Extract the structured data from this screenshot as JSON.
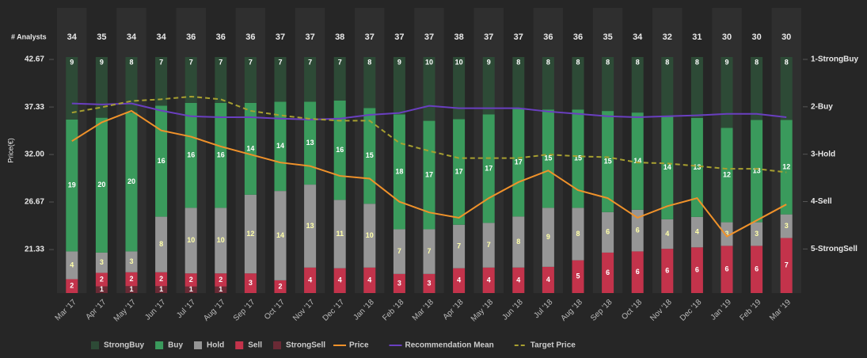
{
  "chart_data": {
    "type": "bar",
    "stacked": true,
    "normalized": true,
    "ylabel": "Price(€)",
    "analysts_label": "# Analysts",
    "analysts": [
      34,
      35,
      34,
      34,
      36,
      36,
      36,
      37,
      37,
      38,
      37,
      37,
      37,
      38,
      37,
      37,
      36,
      36,
      35,
      34,
      32,
      31,
      30,
      30,
      30
    ],
    "categories": [
      "Mar '17",
      "Apr '17",
      "May '17",
      "Jun '17",
      "Jul '17",
      "Aug '17",
      "Sep '17",
      "Oct '17",
      "Nov '17",
      "Dec '17",
      "Jan '18",
      "Feb '18",
      "Mar '18",
      "Apr '18",
      "May '18",
      "Jun '18",
      "Jul '18",
      "Aug '18",
      "Sep '18",
      "Oct '18",
      "Nov '18",
      "Dec '18",
      "Jan '19",
      "Feb '19",
      "Mar '19"
    ],
    "ylim": [
      16.45,
      42.94
    ],
    "yticks": [
      42.67,
      37.33,
      {
        "value": 32,
        "label": "32.00"
      },
      26.67,
      21.33
    ],
    "y2lim": [
      5.93,
      0.95
    ],
    "y2ticks": [
      {
        "value": 1,
        "label": "1-StrongBuy"
      },
      {
        "value": 2,
        "label": "2-Buy"
      },
      {
        "value": 3,
        "label": "3-Hold"
      },
      {
        "value": 4,
        "label": "4-Sell"
      },
      {
        "value": 5,
        "label": "5-StrongSell"
      }
    ],
    "series": [
      {
        "name": "StrongBuy",
        "type": "bar",
        "color": "#2d4a36",
        "label_color": "#ffffff",
        "values": [
          9,
          9,
          8,
          7,
          7,
          7,
          7,
          7,
          7,
          7,
          8,
          9,
          10,
          10,
          9,
          8,
          8,
          8,
          8,
          8,
          8,
          8,
          9,
          8,
          8
        ]
      },
      {
        "name": "Buy",
        "type": "bar",
        "color": "#3a9a5c",
        "label_color": "#ffffff",
        "values": [
          19,
          20,
          20,
          16,
          16,
          16,
          14,
          14,
          13,
          16,
          15,
          18,
          17,
          17,
          17,
          17,
          15,
          15,
          15,
          14,
          14,
          13,
          12,
          13,
          12
        ]
      },
      {
        "name": "Hold",
        "type": "bar",
        "color": "#969696",
        "label_color": "#ffffa8",
        "values": [
          4,
          3,
          3,
          8,
          10,
          10,
          12,
          14,
          13,
          11,
          10,
          7,
          7,
          7,
          7,
          8,
          9,
          8,
          6,
          6,
          4,
          4,
          3,
          3,
          3
        ]
      },
      {
        "name": "Sell",
        "type": "bar",
        "color": "#c3334b",
        "label_color": "#ffffff",
        "values": [
          2,
          2,
          2,
          2,
          2,
          2,
          3,
          2,
          4,
          4,
          4,
          3,
          3,
          4,
          4,
          4,
          4,
          5,
          6,
          6,
          6,
          6,
          6,
          6,
          7
        ]
      },
      {
        "name": "StrongSell",
        "type": "bar",
        "color": "#6a2a35",
        "label_color": "#ffffff",
        "values": [
          0,
          1,
          1,
          1,
          1,
          1,
          0,
          0,
          0,
          0,
          0,
          0,
          0,
          0,
          0,
          0,
          0,
          0,
          0,
          0,
          0,
          0,
          0,
          0,
          0
        ]
      },
      {
        "name": "Price",
        "type": "line",
        "color": "#f0922a",
        "values": [
          33.5,
          35.6,
          36.9,
          34.7,
          34.0,
          32.9,
          32.0,
          31.1,
          30.7,
          29.6,
          29.3,
          26.7,
          25.5,
          24.9,
          27.1,
          28.9,
          30.2,
          28.0,
          27.1,
          24.9,
          26.2,
          27.1,
          22.8,
          24.6,
          26.4
        ]
      },
      {
        "name": "Recommendation Mean",
        "type": "line",
        "axis": "y2",
        "color": "#6a3fc0",
        "values": [
          1.93,
          1.95,
          1.93,
          2.08,
          2.2,
          2.22,
          2.22,
          2.25,
          2.27,
          2.25,
          2.17,
          2.13,
          1.98,
          2.03,
          2.03,
          2.03,
          2.1,
          2.15,
          2.2,
          2.22,
          2.2,
          2.18,
          2.15,
          2.15,
          2.22
        ]
      },
      {
        "name": "Target Price",
        "type": "line",
        "dashed": true,
        "color": "#a8a030",
        "values": [
          36.7,
          37.3,
          38.0,
          38.2,
          38.5,
          38.2,
          36.9,
          36.4,
          36.0,
          35.8,
          35.8,
          33.3,
          32.4,
          31.6,
          31.6,
          31.6,
          32.0,
          31.8,
          31.7,
          31.1,
          31.0,
          30.7,
          30.4,
          30.4,
          30.0
        ]
      }
    ]
  }
}
